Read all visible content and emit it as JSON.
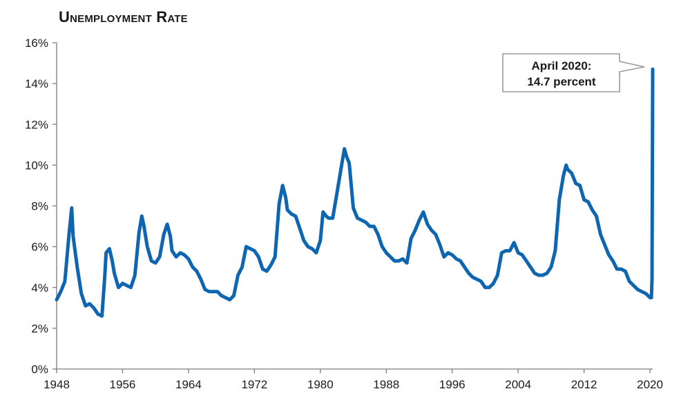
{
  "chart_data": {
    "type": "line",
    "title": "Unemployment Rate",
    "xlabel": "",
    "ylabel": "",
    "xlim": [
      1948,
      2020.33
    ],
    "ylim": [
      0,
      16
    ],
    "y_ticks": [
      "0%",
      "2%",
      "4%",
      "6%",
      "8%",
      "10%",
      "12%",
      "14%",
      "16%"
    ],
    "x_ticks": [
      "1948",
      "1956",
      "1964",
      "1972",
      "1980",
      "1988",
      "1996",
      "2004",
      "2012",
      "2020"
    ],
    "grid": false,
    "line_color": "#0e65b0",
    "annotation": {
      "line1": "April 2020:",
      "line2": "14.7 percent",
      "point": [
        2020.33,
        14.7
      ]
    },
    "series": [
      {
        "x": [
          1948.0,
          1948.5,
          1949.0,
          1949.5,
          1949.83,
          1950.0,
          1950.5,
          1951.0,
          1951.5,
          1952.0,
          1952.5,
          1953.0,
          1953.5,
          1953.83,
          1954.0,
          1954.4,
          1954.75,
          1955.0,
          1955.5,
          1956.0,
          1956.5,
          1957.0,
          1957.5,
          1958.0,
          1958.33,
          1958.6,
          1959.0,
          1959.5,
          1960.0,
          1960.5,
          1961.0,
          1961.42,
          1961.8,
          1962.0,
          1962.5,
          1963.0,
          1963.5,
          1964.0,
          1964.5,
          1965.0,
          1965.5,
          1966.0,
          1966.5,
          1967.0,
          1967.5,
          1968.0,
          1968.5,
          1969.0,
          1969.5,
          1970.0,
          1970.5,
          1971.0,
          1971.5,
          1972.0,
          1972.5,
          1973.0,
          1973.5,
          1974.0,
          1974.5,
          1975.0,
          1975.42,
          1975.8,
          1976.0,
          1976.5,
          1977.0,
          1977.5,
          1978.0,
          1978.5,
          1979.0,
          1979.5,
          1980.0,
          1980.33,
          1980.7,
          1981.0,
          1981.5,
          1982.0,
          1982.5,
          1982.92,
          1983.2,
          1983.5,
          1984.0,
          1984.5,
          1985.0,
          1985.5,
          1986.0,
          1986.5,
          1987.0,
          1987.5,
          1988.0,
          1988.5,
          1989.0,
          1989.5,
          1990.0,
          1990.5,
          1991.0,
          1991.5,
          1992.0,
          1992.5,
          1993.0,
          1993.5,
          1994.0,
          1994.5,
          1995.0,
          1995.5,
          1996.0,
          1996.5,
          1997.0,
          1997.5,
          1998.0,
          1998.5,
          1999.0,
          1999.5,
          2000.0,
          2000.5,
          2001.0,
          2001.5,
          2002.0,
          2002.5,
          2003.0,
          2003.5,
          2004.0,
          2004.5,
          2005.0,
          2005.5,
          2006.0,
          2006.5,
          2007.0,
          2007.5,
          2008.0,
          2008.5,
          2009.0,
          2009.5,
          2009.83,
          2010.0,
          2010.5,
          2011.0,
          2011.5,
          2012.0,
          2012.5,
          2013.0,
          2013.5,
          2014.0,
          2014.5,
          2015.0,
          2015.5,
          2016.0,
          2016.5,
          2017.0,
          2017.5,
          2018.0,
          2018.5,
          2019.0,
          2019.5,
          2020.0,
          2020.17,
          2020.25,
          2020.33
        ],
        "y": [
          3.4,
          3.8,
          4.3,
          6.6,
          7.9,
          6.5,
          5.0,
          3.7,
          3.1,
          3.2,
          3.0,
          2.7,
          2.6,
          4.5,
          5.7,
          5.9,
          5.3,
          4.7,
          4.0,
          4.2,
          4.1,
          4.0,
          4.6,
          6.7,
          7.5,
          7.0,
          6.0,
          5.3,
          5.2,
          5.5,
          6.6,
          7.1,
          6.5,
          5.8,
          5.5,
          5.7,
          5.6,
          5.4,
          5.0,
          4.8,
          4.4,
          3.9,
          3.8,
          3.8,
          3.8,
          3.6,
          3.5,
          3.4,
          3.6,
          4.6,
          5.0,
          6.0,
          5.9,
          5.8,
          5.5,
          4.9,
          4.8,
          5.1,
          5.5,
          8.1,
          9.0,
          8.4,
          7.8,
          7.6,
          7.5,
          6.9,
          6.3,
          6.0,
          5.9,
          5.7,
          6.3,
          7.7,
          7.5,
          7.4,
          7.4,
          8.6,
          9.8,
          10.8,
          10.4,
          10.1,
          7.9,
          7.4,
          7.3,
          7.2,
          7.0,
          7.0,
          6.6,
          6.0,
          5.7,
          5.5,
          5.3,
          5.3,
          5.4,
          5.2,
          6.4,
          6.8,
          7.3,
          7.7,
          7.1,
          6.8,
          6.6,
          6.1,
          5.5,
          5.7,
          5.6,
          5.4,
          5.3,
          5.0,
          4.7,
          4.5,
          4.4,
          4.3,
          4.0,
          4.0,
          4.2,
          4.6,
          5.7,
          5.8,
          5.8,
          6.2,
          5.7,
          5.6,
          5.3,
          5.0,
          4.7,
          4.6,
          4.6,
          4.7,
          5.0,
          5.8,
          8.3,
          9.5,
          10.0,
          9.8,
          9.6,
          9.1,
          9.0,
          8.3,
          8.2,
          7.8,
          7.5,
          6.6,
          6.1,
          5.6,
          5.3,
          4.9,
          4.9,
          4.8,
          4.3,
          4.1,
          3.9,
          3.8,
          3.7,
          3.5,
          3.5,
          4.4,
          14.7
        ]
      }
    ]
  }
}
